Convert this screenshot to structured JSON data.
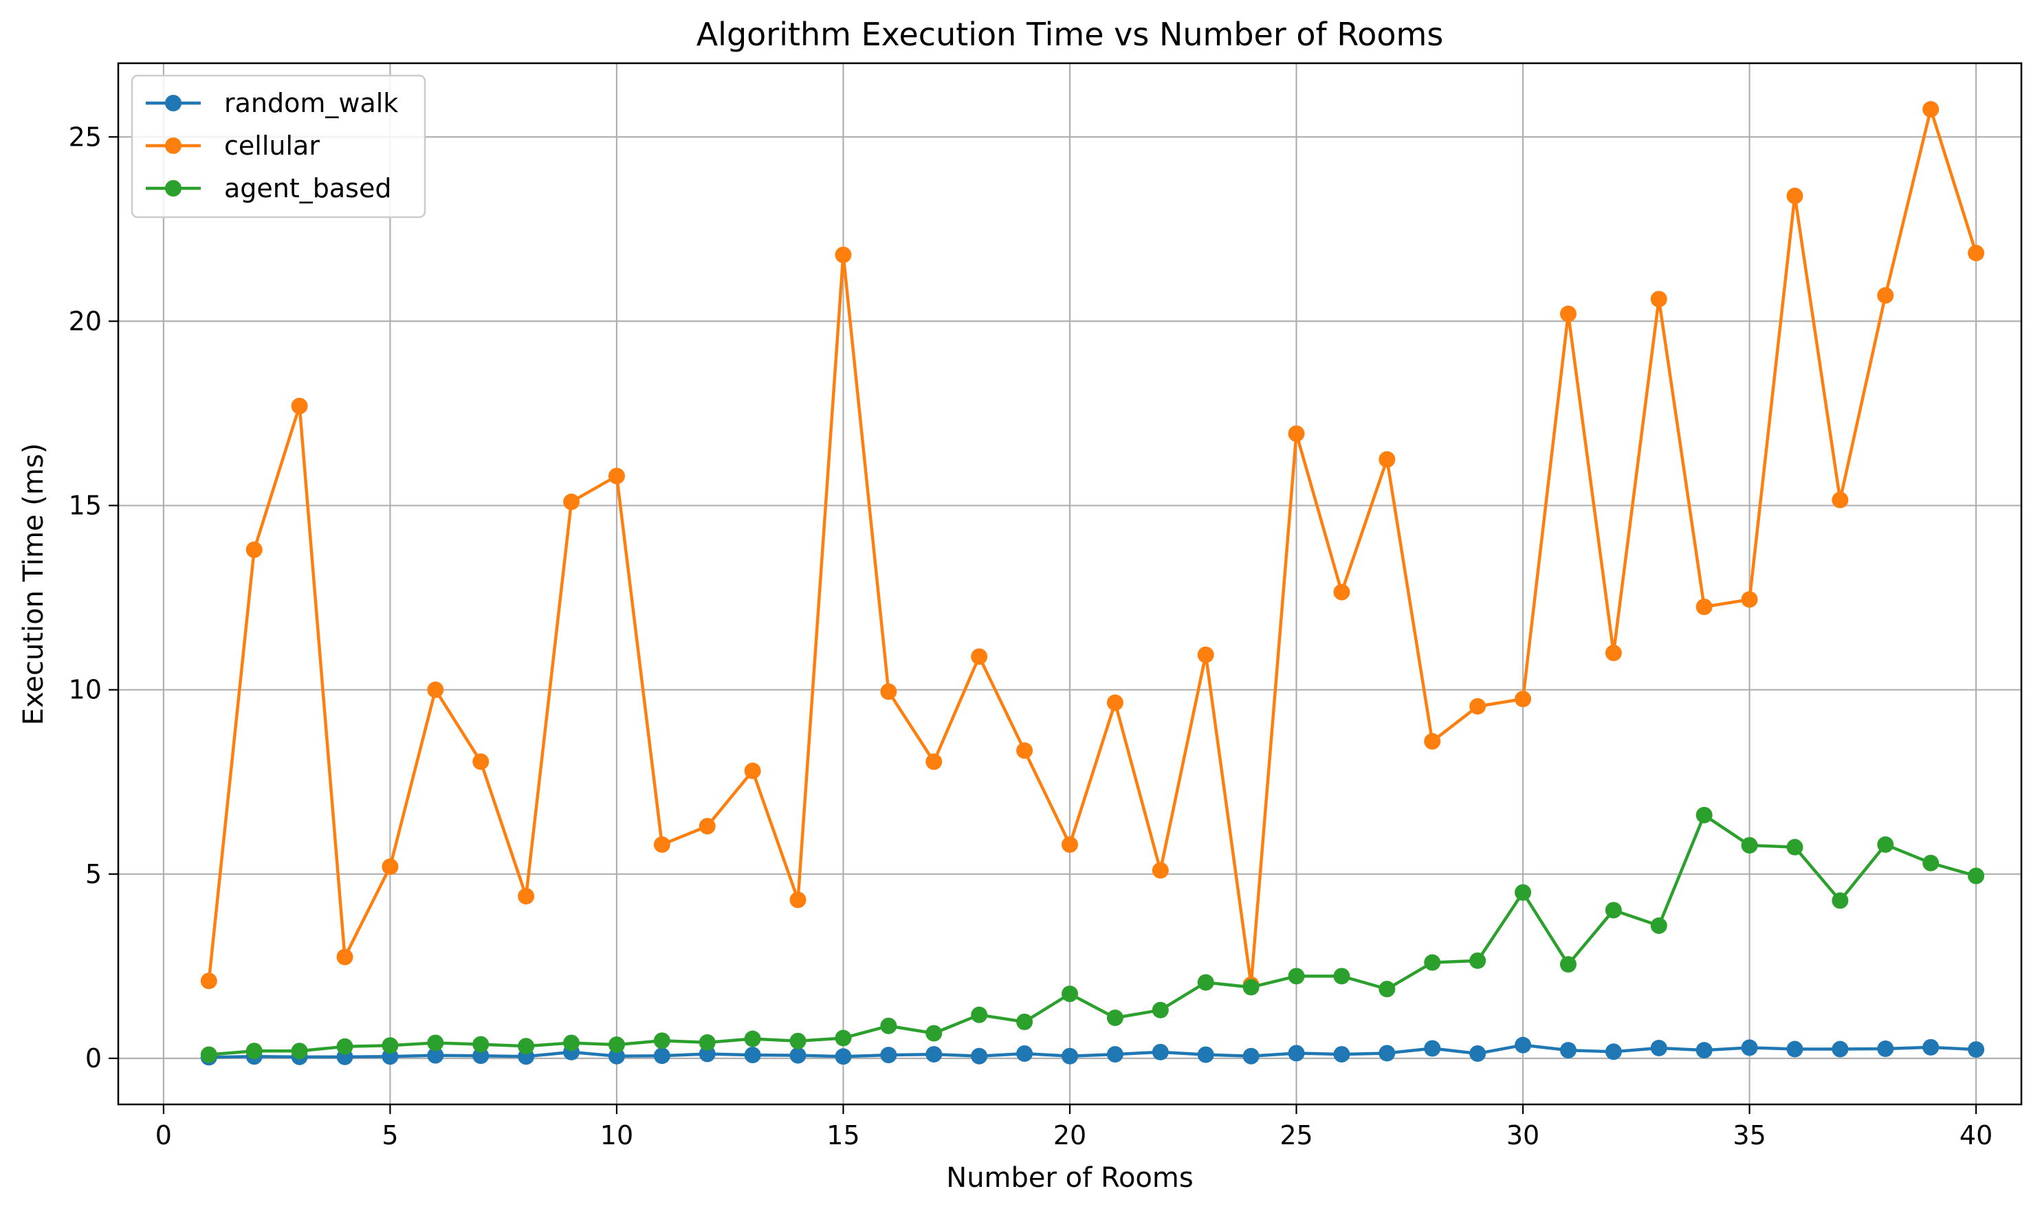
{
  "chart_data": {
    "type": "line",
    "title": "Algorithm Execution Time vs Number of Rooms",
    "xlabel": "Number of Rooms",
    "ylabel": "Execution Time (ms)",
    "xlim": [
      -1,
      41
    ],
    "ylim": [
      -1.25,
      27.0
    ],
    "xticks": [
      0,
      5,
      10,
      15,
      20,
      25,
      30,
      35,
      40
    ],
    "yticks": [
      0,
      5,
      10,
      15,
      20,
      25
    ],
    "grid": true,
    "legend_position": "upper-left",
    "x": [
      1,
      2,
      3,
      4,
      5,
      6,
      7,
      8,
      9,
      10,
      11,
      12,
      13,
      14,
      15,
      16,
      17,
      18,
      19,
      20,
      21,
      22,
      23,
      24,
      25,
      26,
      27,
      28,
      29,
      30,
      31,
      32,
      33,
      34,
      35,
      36,
      37,
      38,
      39,
      40
    ],
    "series": [
      {
        "name": "random_walk",
        "color": "#1f77b4",
        "values": [
          0.03,
          0.05,
          0.04,
          0.04,
          0.05,
          0.08,
          0.07,
          0.05,
          0.17,
          0.06,
          0.07,
          0.12,
          0.09,
          0.08,
          0.05,
          0.09,
          0.11,
          0.06,
          0.13,
          0.06,
          0.11,
          0.17,
          0.1,
          0.06,
          0.14,
          0.11,
          0.14,
          0.27,
          0.13,
          0.36,
          0.22,
          0.18,
          0.28,
          0.22,
          0.29,
          0.25,
          0.25,
          0.26,
          0.3,
          0.24
        ]
      },
      {
        "name": "cellular",
        "color": "#ff7f0e",
        "values": [
          2.1,
          13.8,
          17.7,
          2.75,
          5.2,
          10.0,
          8.05,
          4.4,
          15.1,
          15.8,
          5.8,
          6.3,
          7.8,
          4.3,
          21.8,
          9.95,
          8.05,
          10.9,
          8.35,
          5.8,
          9.65,
          5.1,
          10.95,
          2.0,
          16.95,
          12.65,
          16.25,
          8.6,
          9.55,
          9.75,
          20.2,
          11.0,
          20.6,
          12.25,
          12.45,
          23.4,
          15.15,
          20.7,
          25.75,
          21.85
        ]
      },
      {
        "name": "agent_based",
        "color": "#2ca02c",
        "values": [
          0.1,
          0.2,
          0.2,
          0.32,
          0.35,
          0.42,
          0.38,
          0.33,
          0.42,
          0.37,
          0.48,
          0.43,
          0.53,
          0.47,
          0.55,
          0.88,
          0.68,
          1.18,
          0.99,
          1.75,
          1.1,
          1.31,
          2.06,
          1.93,
          2.23,
          2.23,
          1.88,
          2.6,
          2.65,
          4.5,
          2.55,
          4.02,
          3.6,
          6.6,
          5.78,
          5.73,
          4.28,
          5.8,
          5.3,
          4.95
        ]
      }
    ]
  }
}
